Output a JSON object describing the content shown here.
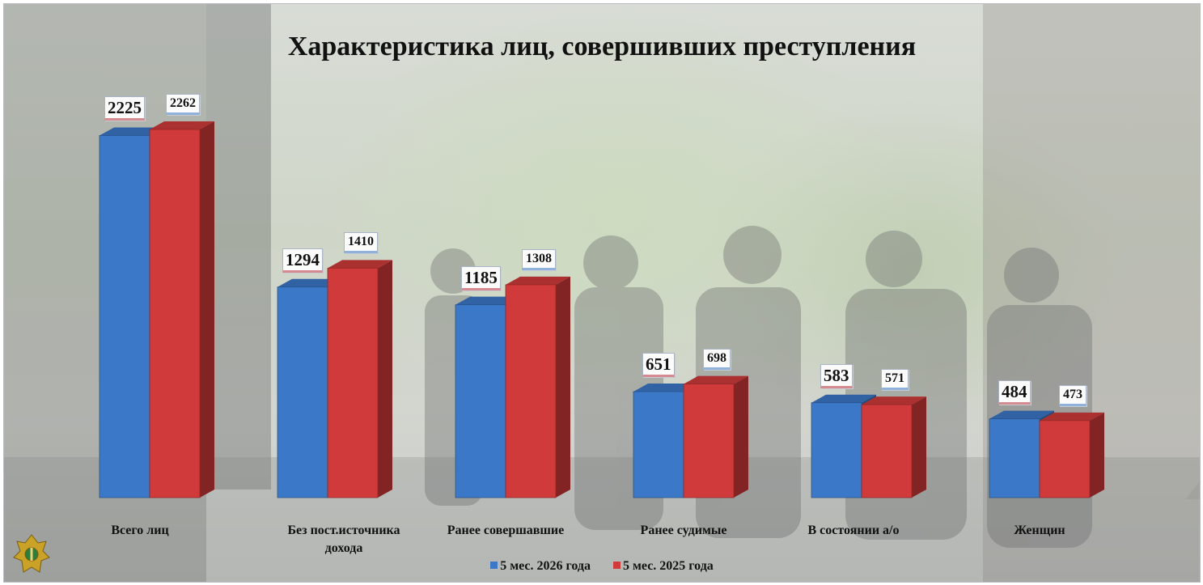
{
  "chart_data": {
    "type": "bar",
    "title": "Характеристика лиц, совершивших преступления",
    "categories": [
      "Всего лиц",
      "Без пост.источника дохода",
      "Ранее совершавшие",
      "Ранее судимые",
      "В состоянии а/о",
      "Женщин"
    ],
    "category_lines": [
      [
        "Всего лиц"
      ],
      [
        "Без пост.источника",
        "дохода"
      ],
      [
        "Ранее совершавшие"
      ],
      [
        "Ранее судимые"
      ],
      [
        "В состоянии а/о"
      ],
      [
        "Женщин"
      ]
    ],
    "series": [
      {
        "name": "5 мес. 2026 года",
        "color": "#3b78c8",
        "values": [
          2225,
          1294,
          1185,
          651,
          583,
          484
        ]
      },
      {
        "name": "5 мес. 2025 года",
        "color": "#d13a3a",
        "values": [
          2262,
          1410,
          1308,
          698,
          571,
          473
        ]
      }
    ],
    "ylim": [
      0,
      2262
    ],
    "legend_position": "bottom",
    "grid": false,
    "style": "3d-column"
  },
  "colors": {
    "series_2026": "#3b78c8",
    "series_2025": "#d13a3a"
  },
  "icons": {
    "emblem": "prosecutor-emblem-icon"
  }
}
